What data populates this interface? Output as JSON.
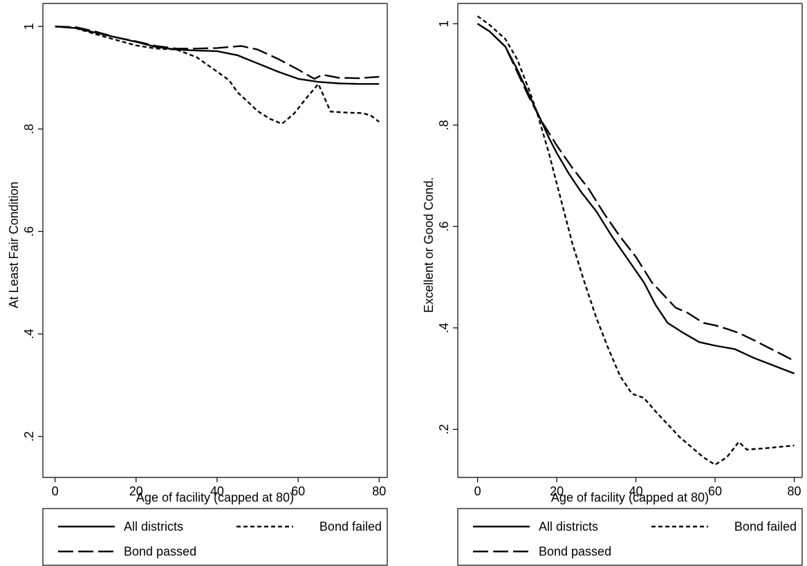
{
  "chart_data": [
    {
      "type": "line",
      "title": "",
      "xlabel": "Age of facility (capped at 80)",
      "ylabel": "At Least Fair Condition",
      "xlim": [
        -3,
        82
      ],
      "ylim": [
        0.12,
        1.045
      ],
      "xticks": [
        0,
        20,
        40,
        60,
        80
      ],
      "xtick_labels": [
        "0",
        "20",
        "40",
        "60",
        "80"
      ],
      "yticks": [
        0.2,
        0.4,
        0.6,
        0.8,
        1.0
      ],
      "ytick_labels": [
        ".2",
        ".4",
        ".6",
        ".8",
        "1"
      ],
      "grid": false,
      "legend_position": "bottom",
      "series": [
        {
          "name": "All districts",
          "style": "solid",
          "x": [
            0,
            5,
            10,
            15,
            20,
            25,
            30,
            35,
            40,
            45,
            50,
            55,
            60,
            65,
            70,
            75,
            80
          ],
          "y": [
            1.0,
            0.997,
            0.988,
            0.979,
            0.97,
            0.96,
            0.955,
            0.953,
            0.952,
            0.944,
            0.928,
            0.912,
            0.898,
            0.892,
            0.889,
            0.888,
            0.888
          ]
        },
        {
          "name": "Bond failed",
          "style": "short-dash",
          "x": [
            0,
            5,
            10,
            15,
            20,
            25,
            30,
            35,
            38,
            40,
            43,
            45,
            48,
            50,
            53,
            56,
            59,
            62,
            65,
            66,
            68,
            72,
            76,
            78,
            80
          ],
          "y": [
            1.0,
            0.997,
            0.985,
            0.974,
            0.963,
            0.957,
            0.955,
            0.94,
            0.923,
            0.912,
            0.895,
            0.872,
            0.85,
            0.835,
            0.82,
            0.81,
            0.83,
            0.86,
            0.888,
            0.87,
            0.834,
            0.832,
            0.831,
            0.826,
            0.814
          ]
        },
        {
          "name": "Bond passed",
          "style": "long-dash",
          "x": [
            0,
            5,
            10,
            15,
            20,
            25,
            30,
            35,
            40,
            43,
            46,
            50,
            55,
            60,
            64,
            66,
            70,
            75,
            80
          ],
          "y": [
            1.0,
            0.999,
            0.99,
            0.979,
            0.971,
            0.962,
            0.957,
            0.957,
            0.958,
            0.96,
            0.962,
            0.955,
            0.937,
            0.916,
            0.898,
            0.906,
            0.9,
            0.899,
            0.902
          ]
        }
      ]
    },
    {
      "type": "line",
      "title": "",
      "xlabel": "Age of facility (capped at 80)",
      "ylabel": "Excellent or Good Cond.",
      "xlim": [
        -5,
        82
      ],
      "ylim": [
        0.105,
        1.04
      ],
      "xticks": [
        0,
        20,
        40,
        60,
        80
      ],
      "xtick_labels": [
        "0",
        "20",
        "40",
        "60",
        "80"
      ],
      "yticks": [
        0.2,
        0.4,
        0.6,
        0.8,
        1.0
      ],
      "ytick_labels": [
        ".2",
        ".4",
        ".6",
        ".8",
        "1"
      ],
      "grid": false,
      "legend_position": "bottom",
      "series": [
        {
          "name": "All districts",
          "style": "solid",
          "x": [
            0,
            3,
            7,
            10,
            13,
            16,
            18,
            20,
            23,
            26,
            30,
            34,
            38,
            42,
            45,
            48,
            52,
            56,
            60,
            65,
            70,
            75,
            80
          ],
          "y": [
            1.0,
            0.985,
            0.955,
            0.91,
            0.86,
            0.81,
            0.775,
            0.745,
            0.705,
            0.67,
            0.63,
            0.58,
            0.535,
            0.49,
            0.445,
            0.41,
            0.39,
            0.372,
            0.365,
            0.358,
            0.34,
            0.325,
            0.31
          ]
        },
        {
          "name": "Bond failed",
          "style": "short-dash",
          "x": [
            0,
            3,
            7,
            10,
            13,
            15,
            18,
            21,
            24,
            27,
            30,
            33,
            36,
            39,
            42,
            45,
            48,
            51,
            54,
            57,
            60,
            63,
            66,
            68,
            72,
            76,
            80
          ],
          "y": [
            1.015,
            0.998,
            0.97,
            0.93,
            0.87,
            0.825,
            0.745,
            0.655,
            0.565,
            0.49,
            0.42,
            0.36,
            0.305,
            0.27,
            0.262,
            0.235,
            0.21,
            0.185,
            0.165,
            0.145,
            0.13,
            0.145,
            0.175,
            0.16,
            0.162,
            0.165,
            0.168
          ]
        },
        {
          "name": "Bond passed",
          "style": "long-dash",
          "x": [
            0,
            3,
            7,
            10,
            13,
            16,
            20,
            24,
            28,
            32,
            36,
            40,
            44,
            47,
            50,
            53,
            57,
            60,
            63,
            66,
            70,
            75,
            80
          ],
          "y": [
            1.0,
            0.985,
            0.955,
            0.905,
            0.855,
            0.81,
            0.76,
            0.715,
            0.675,
            0.625,
            0.58,
            0.54,
            0.49,
            0.465,
            0.44,
            0.43,
            0.41,
            0.405,
            0.398,
            0.39,
            0.375,
            0.355,
            0.335
          ]
        }
      ]
    }
  ]
}
